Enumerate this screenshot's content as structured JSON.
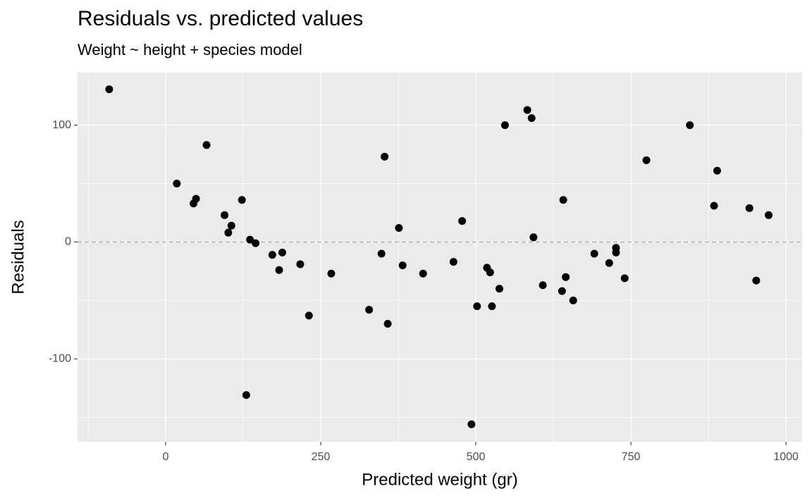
{
  "chart_data": {
    "type": "scatter",
    "title": "Residuals vs. predicted values",
    "subtitle": "Weight ~ height + species model",
    "x_label": "Predicted weight (gr)",
    "y_label": "Residuals",
    "color": "#000000",
    "grid": true,
    "reference_line": {
      "y": 0,
      "color": "#b3b3b3",
      "style": "dashed"
    },
    "xlim": [
      -142,
      1026
    ],
    "xticks": [
      0,
      250,
      500,
      750,
      1000
    ],
    "ylim": [
      -171,
      145
    ],
    "yticks": [
      -100,
      0,
      100
    ],
    "x": [
      -91,
      18,
      45,
      49,
      66,
      95,
      101,
      106,
      123,
      130,
      136,
      145,
      172,
      183,
      188,
      217,
      231,
      267,
      328,
      348,
      353,
      358,
      376,
      382,
      415,
      464,
      478,
      493,
      502,
      518,
      523,
      526,
      538,
      547,
      583,
      590,
      593,
      608,
      639,
      641,
      645,
      657,
      691,
      715,
      726,
      726,
      740,
      775,
      845,
      884,
      889,
      941,
      952,
      972
    ],
    "values": [
      130.7,
      50,
      33,
      37,
      83,
      23,
      8,
      14,
      36,
      -131,
      2,
      -1,
      -11,
      -24,
      -9,
      -19,
      -63,
      -27,
      -58,
      -10,
      73,
      -70,
      12,
      -20,
      -27,
      -17,
      18,
      -156,
      -55,
      -22,
      -26,
      -55,
      -40,
      100,
      113,
      106,
      4,
      -37,
      -42,
      36,
      -30,
      -50,
      -10,
      -18,
      -9,
      -5,
      -31,
      70,
      100,
      31,
      61,
      29,
      -33,
      23
    ]
  }
}
